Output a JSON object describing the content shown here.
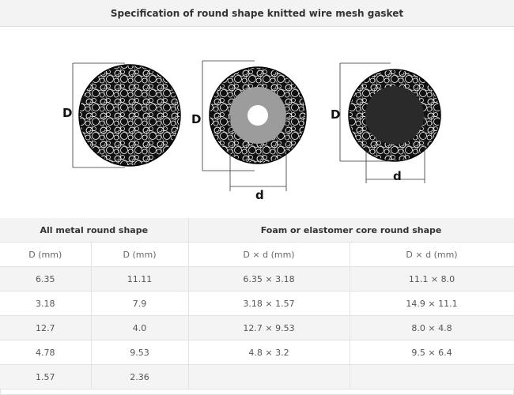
{
  "title": "Specification of round shape knitted wire mesh gasket",
  "figure": {
    "labels": {
      "outer_diameter": "D",
      "inner_diameter": "d"
    },
    "colors": {
      "mesh": "#111111",
      "core_foam": "#9c9c9c",
      "core_elastomer": "#2a2a2a"
    }
  },
  "table": {
    "group_headers": [
      "All metal round shape",
      "Foam or elastomer core round shape"
    ],
    "sub_headers": [
      "D (mm)",
      "D (mm)",
      "D × d (mm)",
      "D × d (mm)"
    ],
    "rows": [
      [
        "6.35",
        "11.11",
        "6.35 × 3.18",
        "11.1 × 8.0"
      ],
      [
        "3.18",
        "7.9",
        "3.18 × 1.57",
        "14.9 × 11.1"
      ],
      [
        "12.7",
        "4.0",
        "12.7 × 9.53",
        "8.0 × 4.8"
      ],
      [
        "4.78",
        "9.53",
        "4.8 × 3.2",
        "9.5 × 6.4"
      ],
      [
        "1.57",
        "2.36",
        "",
        ""
      ]
    ]
  }
}
